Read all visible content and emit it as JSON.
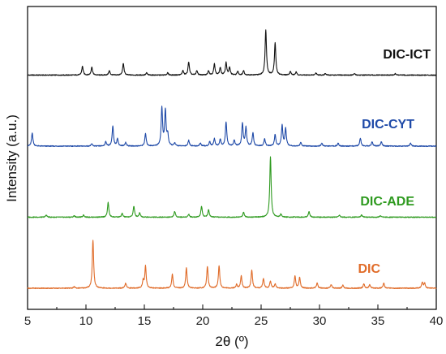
{
  "chart_data": {
    "type": "line",
    "xlabel": "2θ (º)",
    "ylabel": "Intensity (a.u.)",
    "xlim": [
      5,
      40
    ],
    "x_ticks": [
      5,
      10,
      15,
      20,
      25,
      30,
      35,
      40
    ],
    "y_ticks_shown": false,
    "grid": false,
    "legend": "inline labels to the right of each trace",
    "series": [
      {
        "name": "DIC-ICT",
        "color": "#111111",
        "offset": 3.0,
        "peaks": [
          [
            9.7,
            0.12
          ],
          [
            10.5,
            0.11
          ],
          [
            12.0,
            0.06
          ],
          [
            13.2,
            0.16
          ],
          [
            15.2,
            0.03
          ],
          [
            17.0,
            0.03
          ],
          [
            18.3,
            0.06
          ],
          [
            18.8,
            0.18
          ],
          [
            19.5,
            0.06
          ],
          [
            20.5,
            0.06
          ],
          [
            21.0,
            0.15
          ],
          [
            21.5,
            0.1
          ],
          [
            22.0,
            0.17
          ],
          [
            22.3,
            0.1
          ],
          [
            23.0,
            0.05
          ],
          [
            23.5,
            0.06
          ],
          [
            25.4,
            0.62
          ],
          [
            26.2,
            0.44
          ],
          [
            27.5,
            0.05
          ],
          [
            28.0,
            0.04
          ],
          [
            29.7,
            0.03
          ],
          [
            30.5,
            0.02
          ],
          [
            33.0,
            0.02
          ],
          [
            36.5,
            0.02
          ]
        ]
      },
      {
        "name": "DIC-CYT",
        "color": "#1f4aa8",
        "offset": 2.0,
        "peaks": [
          [
            5.4,
            0.18
          ],
          [
            10.5,
            0.03
          ],
          [
            11.7,
            0.06
          ],
          [
            12.3,
            0.27
          ],
          [
            12.7,
            0.1
          ],
          [
            13.4,
            0.05
          ],
          [
            15.1,
            0.17
          ],
          [
            16.5,
            0.52
          ],
          [
            16.8,
            0.48
          ],
          [
            17.0,
            0.15
          ],
          [
            17.6,
            0.04
          ],
          [
            18.8,
            0.08
          ],
          [
            19.8,
            0.04
          ],
          [
            20.6,
            0.06
          ],
          [
            21.0,
            0.1
          ],
          [
            21.5,
            0.09
          ],
          [
            22.0,
            0.33
          ],
          [
            22.7,
            0.08
          ],
          [
            23.4,
            0.31
          ],
          [
            23.7,
            0.25
          ],
          [
            24.3,
            0.18
          ],
          [
            25.3,
            0.1
          ],
          [
            26.2,
            0.16
          ],
          [
            26.8,
            0.28
          ],
          [
            27.1,
            0.24
          ],
          [
            28.4,
            0.05
          ],
          [
            30.2,
            0.04
          ],
          [
            31.6,
            0.04
          ],
          [
            33.5,
            0.11
          ],
          [
            34.5,
            0.06
          ],
          [
            35.3,
            0.06
          ],
          [
            37.8,
            0.04
          ]
        ]
      },
      {
        "name": "DIC-ADE",
        "color": "#2e9a1f",
        "offset": 1.0,
        "peaks": [
          [
            6.6,
            0.03
          ],
          [
            9.0,
            0.02
          ],
          [
            9.8,
            0.03
          ],
          [
            11.9,
            0.2
          ],
          [
            13.1,
            0.05
          ],
          [
            14.1,
            0.15
          ],
          [
            14.6,
            0.06
          ],
          [
            17.6,
            0.08
          ],
          [
            18.8,
            0.04
          ],
          [
            19.9,
            0.15
          ],
          [
            20.5,
            0.1
          ],
          [
            23.5,
            0.07
          ],
          [
            25.8,
            0.83
          ],
          [
            26.7,
            0.04
          ],
          [
            29.1,
            0.08
          ],
          [
            31.7,
            0.03
          ],
          [
            33.6,
            0.03
          ],
          [
            35.2,
            0.02
          ]
        ]
      },
      {
        "name": "DIC",
        "color": "#e06b28",
        "offset": 0.0,
        "peaks": [
          [
            9.0,
            0.02
          ],
          [
            10.6,
            0.66
          ],
          [
            13.4,
            0.07
          ],
          [
            14.9,
            0.1
          ],
          [
            15.1,
            0.3
          ],
          [
            17.4,
            0.19
          ],
          [
            18.6,
            0.28
          ],
          [
            20.4,
            0.3
          ],
          [
            21.4,
            0.31
          ],
          [
            22.9,
            0.05
          ],
          [
            23.3,
            0.17
          ],
          [
            24.2,
            0.25
          ],
          [
            25.2,
            0.13
          ],
          [
            25.8,
            0.1
          ],
          [
            26.2,
            0.06
          ],
          [
            27.9,
            0.17
          ],
          [
            28.3,
            0.15
          ],
          [
            29.8,
            0.07
          ],
          [
            31.0,
            0.05
          ],
          [
            32.0,
            0.04
          ],
          [
            33.8,
            0.06
          ],
          [
            34.3,
            0.05
          ],
          [
            35.5,
            0.07
          ],
          [
            38.8,
            0.08
          ],
          [
            39.0,
            0.07
          ]
        ]
      }
    ]
  }
}
